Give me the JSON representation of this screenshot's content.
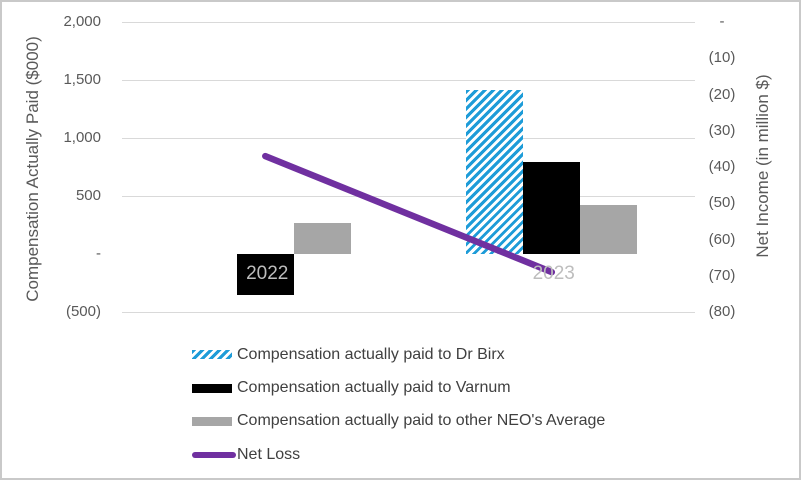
{
  "chart_data": {
    "type": "bar",
    "subtype": "clustered-bar-with-line-overlay",
    "title": "",
    "categories": [
      "2022",
      "2023"
    ],
    "series": [
      {
        "name": "Compensation actually paid to Dr Birx",
        "type": "bar",
        "axis": "left",
        "style": "hatch",
        "values": [
          0,
          1410
        ]
      },
      {
        "name": "Compensation actually paid to Varnum",
        "type": "bar",
        "axis": "left",
        "style": "black",
        "values": [
          -350,
          790
        ]
      },
      {
        "name": "Compensation actually paid to other NEO's Average",
        "type": "bar",
        "axis": "left",
        "style": "gray",
        "values": [
          270,
          420
        ]
      },
      {
        "name": "Net Loss",
        "type": "line",
        "axis": "right",
        "style": "purple-line",
        "values": [
          -37,
          -69
        ]
      }
    ],
    "left_axis": {
      "title": "Compensation Actually Paid ($000)",
      "range": [
        -500,
        2000
      ],
      "ticks": [
        {
          "label": "2,000",
          "value": 2000
        },
        {
          "label": "1,500",
          "value": 1500
        },
        {
          "label": "1,000",
          "value": 1000
        },
        {
          "label": "500",
          "value": 500
        },
        {
          "label": "-",
          "value": 0
        },
        {
          "label": "(500)",
          "value": -500
        }
      ],
      "gridline_values": [
        2000,
        1500,
        1000,
        500,
        -500
      ]
    },
    "right_axis": {
      "title": "Net Income (in million $)",
      "range": [
        -80,
        0
      ],
      "ticks": [
        {
          "label": "-",
          "value": 0
        },
        {
          "label": "(10)",
          "value": -10
        },
        {
          "label": "(20)",
          "value": -20
        },
        {
          "label": "(30)",
          "value": -30
        },
        {
          "label": "(40)",
          "value": -40
        },
        {
          "label": "(50)",
          "value": -50
        },
        {
          "label": "(60)",
          "value": -60
        },
        {
          "label": "(70)",
          "value": -70
        },
        {
          "label": "(80)",
          "value": -80
        }
      ]
    },
    "legend": {
      "position": "bottom-left",
      "items": [
        "Compensation actually paid to Dr Birx",
        "Compensation actually paid to Varnum",
        "Compensation actually paid to other NEO's Average",
        "Net Loss"
      ]
    },
    "colors": {
      "birx_hatch_blue": "#1e9cd8",
      "varnum_black": "#000000",
      "neo_average_gray": "#a6a6a6",
      "net_loss_purple": "#7030a0",
      "gridline": "#d9d9d9",
      "tick_text": "#595959",
      "category_label_text": "#bdbdbd",
      "legend_text": "#404040",
      "frame_border": "#c9c9c9"
    },
    "grid": "horizontal-only",
    "zero_gridline_drawn": false
  }
}
